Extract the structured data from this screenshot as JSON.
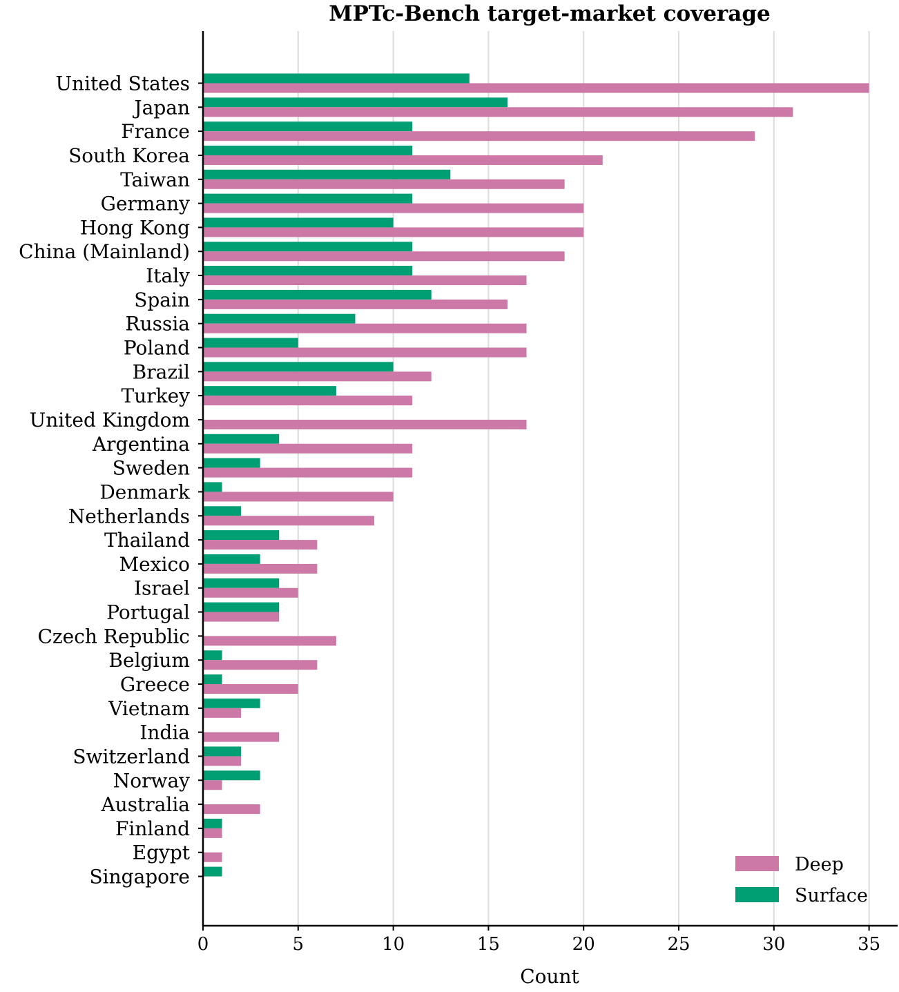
{
  "chart_data": {
    "type": "bar",
    "orientation": "horizontal",
    "title": "MPTc-Bench target-market coverage",
    "xlabel": "Count",
    "ylabel": "",
    "xlim": [
      0,
      36.5
    ],
    "xticks": [
      0,
      5,
      10,
      15,
      20,
      25,
      30,
      35
    ],
    "grid": "vertical",
    "legend_position": "bottom-right",
    "categories": [
      "United States",
      "Japan",
      "France",
      "South Korea",
      "Taiwan",
      "Germany",
      "Hong Kong",
      "China (Mainland)",
      "Italy",
      "Spain",
      "Russia",
      "Poland",
      "Brazil",
      "Turkey",
      "United Kingdom",
      "Argentina",
      "Sweden",
      "Denmark",
      "Netherlands",
      "Thailand",
      "Mexico",
      "Israel",
      "Portugal",
      "Czech Republic",
      "Belgium",
      "Greece",
      "Vietnam",
      "India",
      "Switzerland",
      "Norway",
      "Australia",
      "Finland",
      "Egypt",
      "Singapore"
    ],
    "series": [
      {
        "name": "Deep",
        "color": "#cc79a7",
        "values": [
          35,
          31,
          29,
          21,
          19,
          20,
          20,
          19,
          17,
          16,
          17,
          17,
          12,
          11,
          17,
          11,
          11,
          10,
          9,
          6,
          6,
          5,
          4,
          7,
          6,
          5,
          2,
          4,
          2,
          1,
          3,
          1,
          1,
          0
        ]
      },
      {
        "name": "Surface",
        "color": "#009e73",
        "values": [
          14,
          16,
          11,
          11,
          13,
          11,
          10,
          11,
          11,
          12,
          8,
          5,
          10,
          7,
          0,
          4,
          3,
          1,
          2,
          4,
          3,
          4,
          4,
          0,
          1,
          1,
          3,
          0,
          2,
          3,
          0,
          1,
          0,
          1
        ]
      }
    ]
  }
}
